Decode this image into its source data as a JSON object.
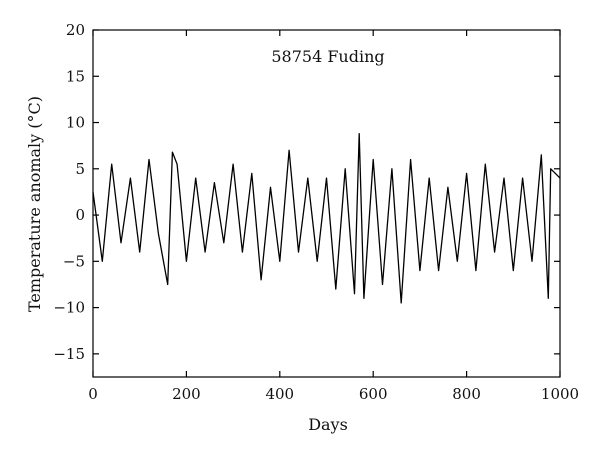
{
  "chart_data": {
    "type": "line",
    "title": "58754 Fuding",
    "xlabel": "Days",
    "ylabel": "Temperature anomaly (°C)",
    "xlim": [
      0,
      1000
    ],
    "ylim": [
      -17.5,
      20
    ],
    "x_ticks": [
      0,
      200,
      400,
      600,
      800,
      1000
    ],
    "y_ticks": [
      -15,
      -10,
      -5,
      0,
      5,
      10,
      15,
      20
    ],
    "x_tick_labels": [
      "0",
      "200",
      "400",
      "600",
      "800",
      "1000"
    ],
    "y_tick_labels": [
      "−15",
      "−10",
      "−5",
      "0",
      "5",
      "10",
      "15",
      "20"
    ],
    "grid": false,
    "line_color": "#000000",
    "series": [
      {
        "x": [
          0,
          20,
          40,
          60,
          80,
          100,
          120,
          140,
          160,
          170,
          180,
          200,
          220,
          240,
          260,
          280,
          300,
          320,
          340,
          360,
          380,
          400,
          420,
          440,
          460,
          480,
          500,
          520,
          540,
          560,
          570,
          580,
          600,
          620,
          640,
          660,
          680,
          700,
          720,
          740,
          760,
          780,
          800,
          820,
          840,
          860,
          880,
          900,
          920,
          940,
          960,
          975,
          980,
          1000
        ],
        "y": [
          2.5,
          -5,
          5.5,
          -3,
          4,
          -4,
          6,
          -2,
          -7.5,
          6.8,
          5.5,
          -5,
          4,
          -4,
          3.5,
          -3,
          5.5,
          -4,
          4.5,
          -7,
          3,
          -5,
          7,
          -4,
          4,
          -5,
          4,
          -8,
          5,
          -8.5,
          8.8,
          -9,
          6,
          -7.5,
          5,
          -9.5,
          6,
          -6,
          4,
          -6,
          3,
          -5,
          4.5,
          -6,
          5.5,
          -4,
          4,
          -6,
          4,
          -5,
          6.5,
          -9,
          5,
          4
        ]
      }
    ]
  }
}
